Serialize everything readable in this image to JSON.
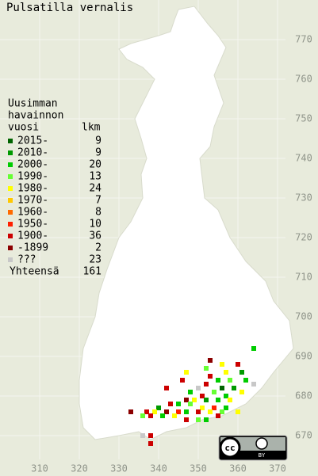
{
  "title": "Pulsatilla vernalis",
  "legend": {
    "header": [
      "Uusimman",
      "havainnon",
      "vuosi"
    ],
    "count_header": "lkm",
    "items": [
      {
        "label": "2015-",
        "count": 9,
        "color": "#006400"
      },
      {
        "label": "2010-",
        "count": 9,
        "color": "#009a00"
      },
      {
        "label": "2000-",
        "count": 20,
        "color": "#00cc00"
      },
      {
        "label": "1990-",
        "count": 13,
        "color": "#66ff33"
      },
      {
        "label": "1980-",
        "count": 24,
        "color": "#ffff00"
      },
      {
        "label": "1970-",
        "count": 7,
        "color": "#ffc800"
      },
      {
        "label": "1960-",
        "count": 8,
        "color": "#ff6a00"
      },
      {
        "label": "1950-",
        "count": 10,
        "color": "#ff2000"
      },
      {
        "label": "1900-",
        "count": 36,
        "color": "#cc0000"
      },
      {
        "label": "-1899",
        "count": 2,
        "color": "#8b0000"
      },
      {
        "label": "???",
        "count": 23,
        "color": "#c8c8c8"
      }
    ],
    "total_label": "Yhteensä",
    "total": 161
  },
  "map": {
    "xlim": [
      300,
      380
    ],
    "ylim": [
      660,
      780
    ],
    "xticks": [
      310,
      320,
      330,
      340,
      350,
      360,
      370
    ],
    "yticks": [
      670,
      680,
      690,
      700,
      710,
      720,
      730,
      740,
      750,
      760,
      770
    ],
    "points": [
      {
        "x": 364,
        "y": 692,
        "period": 2
      },
      {
        "x": 360,
        "y": 688,
        "period": 8
      },
      {
        "x": 356,
        "y": 688,
        "period": 4
      },
      {
        "x": 353,
        "y": 689,
        "period": 9
      },
      {
        "x": 352,
        "y": 687,
        "period": 3
      },
      {
        "x": 357,
        "y": 686,
        "period": 4
      },
      {
        "x": 361,
        "y": 686,
        "period": 1
      },
      {
        "x": 353,
        "y": 685,
        "period": 8
      },
      {
        "x": 355,
        "y": 684,
        "period": 2
      },
      {
        "x": 358,
        "y": 684,
        "period": 3
      },
      {
        "x": 362,
        "y": 684,
        "period": 2
      },
      {
        "x": 364,
        "y": 683,
        "period": 10
      },
      {
        "x": 352,
        "y": 683,
        "period": 8
      },
      {
        "x": 350,
        "y": 682,
        "period": 10
      },
      {
        "x": 356,
        "y": 682,
        "period": 0
      },
      {
        "x": 359,
        "y": 682,
        "period": 1
      },
      {
        "x": 361,
        "y": 681,
        "period": 4
      },
      {
        "x": 354,
        "y": 681,
        "period": 3
      },
      {
        "x": 357,
        "y": 680,
        "period": 2
      },
      {
        "x": 351,
        "y": 680,
        "period": 8
      },
      {
        "x": 347,
        "y": 679,
        "period": 9
      },
      {
        "x": 349,
        "y": 679,
        "period": 4
      },
      {
        "x": 352,
        "y": 679,
        "period": 1
      },
      {
        "x": 355,
        "y": 679,
        "period": 2
      },
      {
        "x": 358,
        "y": 679,
        "period": 4
      },
      {
        "x": 343,
        "y": 678,
        "period": 8
      },
      {
        "x": 345,
        "y": 678,
        "period": 2
      },
      {
        "x": 348,
        "y": 678,
        "period": 3
      },
      {
        "x": 351,
        "y": 677,
        "period": 4
      },
      {
        "x": 354,
        "y": 677,
        "period": 7
      },
      {
        "x": 357,
        "y": 677,
        "period": 2
      },
      {
        "x": 340,
        "y": 677,
        "period": 1
      },
      {
        "x": 337,
        "y": 676,
        "period": 8
      },
      {
        "x": 339,
        "y": 676,
        "period": 4
      },
      {
        "x": 342,
        "y": 676,
        "period": 9
      },
      {
        "x": 345,
        "y": 676,
        "period": 7
      },
      {
        "x": 347,
        "y": 676,
        "period": 2
      },
      {
        "x": 350,
        "y": 676,
        "period": 8
      },
      {
        "x": 353,
        "y": 676,
        "period": 4
      },
      {
        "x": 356,
        "y": 676,
        "period": 3
      },
      {
        "x": 336,
        "y": 675,
        "period": 3
      },
      {
        "x": 338,
        "y": 675,
        "period": 8
      },
      {
        "x": 341,
        "y": 675,
        "period": 2
      },
      {
        "x": 344,
        "y": 675,
        "period": 4
      },
      {
        "x": 347,
        "y": 674,
        "period": 8
      },
      {
        "x": 350,
        "y": 674,
        "period": 3
      },
      {
        "x": 352,
        "y": 674,
        "period": 2
      },
      {
        "x": 355,
        "y": 675,
        "period": 8
      },
      {
        "x": 333,
        "y": 676,
        "period": 9
      },
      {
        "x": 347,
        "y": 686,
        "period": 4
      },
      {
        "x": 346,
        "y": 684,
        "period": 8
      },
      {
        "x": 342,
        "y": 682,
        "period": 8
      },
      {
        "x": 348,
        "y": 681,
        "period": 2
      },
      {
        "x": 338,
        "y": 670,
        "period": 8
      },
      {
        "x": 338,
        "y": 668,
        "period": 8
      },
      {
        "x": 336,
        "y": 670,
        "period": 10
      },
      {
        "x": 360,
        "y": 676,
        "period": 4
      }
    ]
  },
  "badge": {
    "cc": "cc",
    "by": "BY"
  }
}
